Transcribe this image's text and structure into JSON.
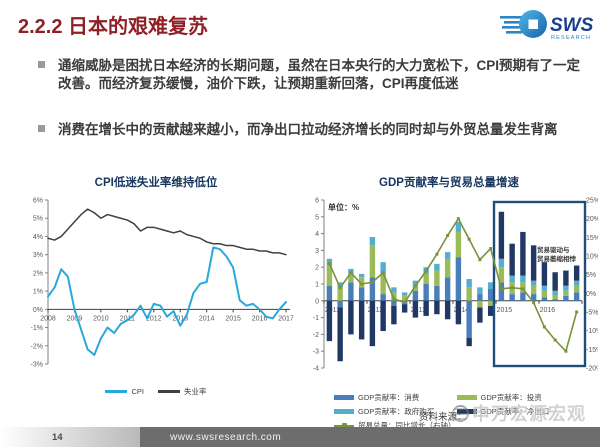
{
  "slide": {
    "title": "2.2.2 日本的艰难复苏",
    "logo": {
      "text": "SWS",
      "subtext": "RESEARCH"
    },
    "bullets": [
      "通缩威胁是困扰日本经济的长期问题，虽然在日本央行的大力宽松下，CPI预期有了一定改善。而经济复苏缓慢，油价下跌，让预期重新回落，CPI再度低迷",
      "消费在增长中的贡献越来越小，而净出口拉动经济增长的同时却与外贸总量发生背离"
    ],
    "source_label": "资料来源：",
    "watermark": "申万宏源宏观",
    "footer": {
      "page": "14",
      "url": "www.swsresearch.com"
    }
  },
  "colors": {
    "title_red": "#8f2126",
    "chart_title_navy": "#17375E",
    "cpi_line": "#29A8DC",
    "unemployment_line": "#404040",
    "bar_consumption": "#4A7EBB",
    "bar_investment": "#9BBB59",
    "bar_government": "#55AECE",
    "bar_netexport": "#1F3864",
    "trade_line": "#77933C",
    "highlight_box": "#1F4E79",
    "axis_gray": "#808080",
    "footer_gray": "#6d6d6d"
  },
  "chart_data": [
    {
      "type": "line",
      "title": "CPI低迷失业率维持低位",
      "x_start": 2008,
      "x_step": 0.25,
      "series": [
        {
          "name": "CPI",
          "color": "#29A8DC",
          "width": 2,
          "values": [
            0.7,
            1.2,
            2.2,
            1.8,
            0.0,
            -1.1,
            -2.2,
            -2.5,
            -1.6,
            -1.0,
            -1.3,
            -0.8,
            -0.6,
            -0.3,
            0.2,
            -0.5,
            0.3,
            0.2,
            -0.4,
            -0.1,
            -0.9,
            -0.3,
            0.9,
            1.4,
            1.5,
            3.4,
            3.3,
            2.9,
            2.3,
            0.5,
            0.2,
            0.3,
            0.0,
            -0.4,
            -0.5,
            0.0,
            0.4
          ]
        },
        {
          "name": "失业率",
          "color": "#404040",
          "width": 1.5,
          "values": [
            3.9,
            3.8,
            4.0,
            4.4,
            4.8,
            5.2,
            5.5,
            5.3,
            5.0,
            5.2,
            5.1,
            5.0,
            4.9,
            4.7,
            4.3,
            4.5,
            4.5,
            4.4,
            4.3,
            4.2,
            4.3,
            4.1,
            4.0,
            3.9,
            3.7,
            3.6,
            3.6,
            3.5,
            3.5,
            3.4,
            3.3,
            3.3,
            3.2,
            3.2,
            3.1,
            3.1,
            3.0
          ]
        }
      ],
      "ylim": [
        -3,
        6
      ],
      "yticks_left": [
        "6%",
        "5%",
        "4%",
        "3%",
        "2%",
        "1%",
        "0%",
        "-1%",
        "-2%",
        "-3%"
      ],
      "xticks": [
        "2008",
        "2009",
        "2010",
        "2011",
        "2012",
        "2013",
        "2014",
        "2015",
        "2016",
        "2017"
      ],
      "legend_position": "bottom"
    },
    {
      "type": "combo-stacked-bar-line",
      "title": "GDP贡献率与贸易总量增速",
      "unit_label": "单位：%",
      "categories": [
        "2011Q1",
        "2011Q2",
        "2011Q3",
        "2011Q4",
        "2012Q1",
        "2012Q2",
        "2012Q3",
        "2012Q4",
        "2013Q1",
        "2013Q2",
        "2013Q3",
        "2013Q4",
        "2014Q1",
        "2014Q2",
        "2014Q3",
        "2014Q4",
        "2015Q1",
        "2015Q2",
        "2015Q3",
        "2015Q4",
        "2016Q1",
        "2016Q2",
        "2016Q3",
        "2016Q4"
      ],
      "bar_series": [
        {
          "name": "GDP贡献率：消费",
          "color": "#4A7EBB",
          "values": [
            0.9,
            -0.4,
            1.1,
            0.8,
            1.4,
            0.4,
            -0.3,
            -0.2,
            0.6,
            1.0,
            0.9,
            1.4,
            2.6,
            -2.2,
            0.4,
            0.7,
            1.1,
            0.4,
            0.5,
            0.4,
            0.2,
            0.1,
            0.3,
            0.5
          ]
        },
        {
          "name": "GDP贡献率：投资",
          "color": "#9BBB59",
          "values": [
            1.2,
            0.8,
            0.5,
            0.6,
            1.9,
            1.2,
            0.5,
            0.3,
            0.3,
            0.6,
            0.9,
            1.1,
            1.5,
            0.8,
            -0.4,
            -0.3,
            0.9,
            0.7,
            0.6,
            0.5,
            0.4,
            0.2,
            0.3,
            0.4
          ]
        },
        {
          "name": "GDP贡献率：政府购买",
          "color": "#55AECE",
          "values": [
            0.4,
            0.3,
            0.3,
            0.2,
            0.5,
            0.7,
            0.3,
            0.2,
            0.3,
            0.4,
            0.4,
            0.4,
            0.6,
            0.5,
            0.4,
            0.4,
            0.5,
            0.4,
            0.4,
            0.3,
            0.3,
            0.3,
            0.3,
            0.3
          ]
        },
        {
          "name": "GDP贡献率：净出口",
          "color": "#1F3864",
          "values": [
            -2.4,
            -3.2,
            -2.0,
            -2.3,
            -2.7,
            -1.8,
            -1.1,
            -0.5,
            -1.0,
            -0.9,
            -0.8,
            -1.1,
            -1.4,
            -0.5,
            -0.9,
            -0.6,
            2.8,
            1.9,
            2.6,
            2.1,
            1.4,
            1.1,
            0.9,
            0.9
          ]
        }
      ],
      "line_series": {
        "name": "贸易总量：同比增长（右轴）",
        "color": "#77933C",
        "values": [
          8,
          1.5,
          5.5,
          2.5,
          3,
          5.5,
          -1.5,
          -2.5,
          2,
          6,
          10.5,
          15.5,
          20,
          14.5,
          9,
          12,
          1.2,
          1.5,
          1.2,
          -2.5,
          -9,
          -12.5,
          -15.5,
          -5
        ]
      },
      "ylim_left": [
        -4,
        6
      ],
      "ylim_right": [
        -20,
        25
      ],
      "yticks_left": [
        "6",
        "5",
        "4",
        "3",
        "2",
        "1",
        "0",
        "-1",
        "-2",
        "-3",
        "-4"
      ],
      "yticks_right": [
        "25%",
        "20%",
        "15%",
        "10%",
        "5%",
        "0%",
        "-5%",
        "-10%",
        "-15%",
        "-20%"
      ],
      "xticks": [
        "2011",
        "2012",
        "2013",
        "2014",
        "2015",
        "2016"
      ],
      "highlight_box": {
        "from_index": 16,
        "to_index": 23
      },
      "annotation_line1": "贸易驱动与",
      "annotation_line2": "贸易萎缩相悖",
      "legend_position": "bottom"
    }
  ]
}
